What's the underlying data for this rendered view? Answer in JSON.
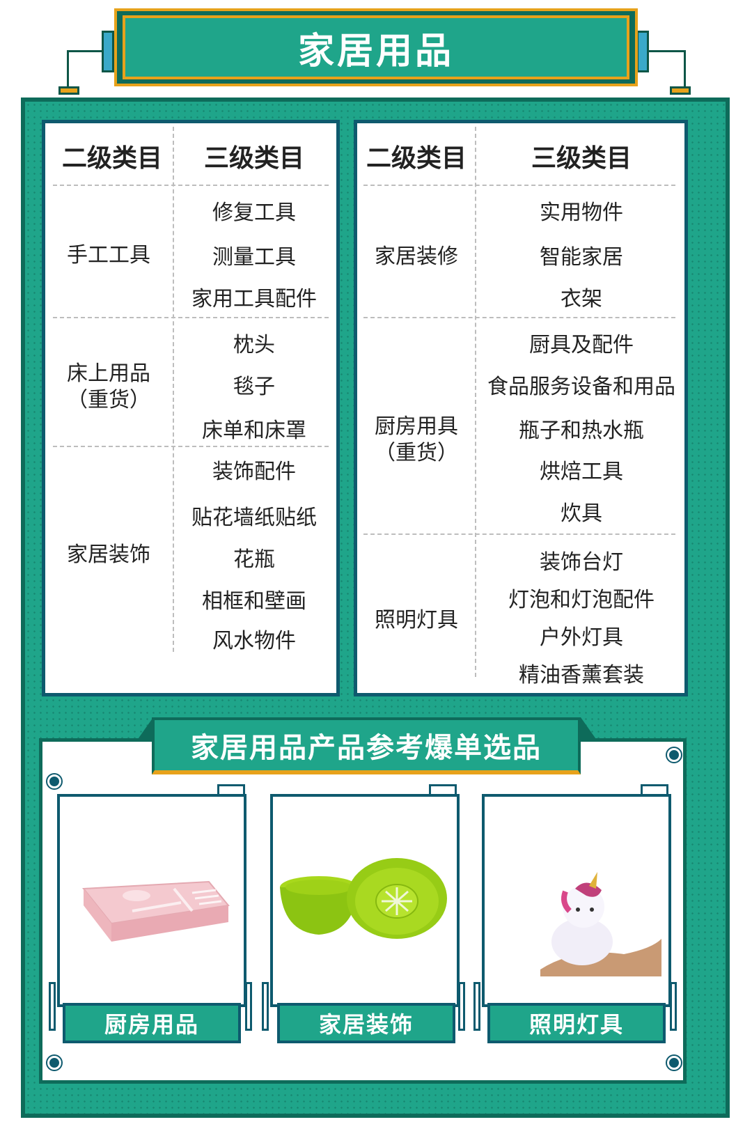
{
  "title": "家居用品",
  "left_table": {
    "header_level2": "二级类目",
    "header_level3": "三级类目",
    "groups": [
      {
        "category": "手工工具",
        "items": [
          "修复工具",
          "测量工具",
          "家用工具配件"
        ]
      },
      {
        "category": "床上用品\n（重货）",
        "items": [
          "枕头",
          "毯子",
          "床单和床罩"
        ]
      },
      {
        "category": "家居装饰",
        "items": [
          "装饰配件",
          "贴花墙纸贴纸",
          "花瓶",
          "相框和壁画",
          "风水物件"
        ]
      }
    ]
  },
  "right_table": {
    "header_level2": "二级类目",
    "header_level3": "三级类目",
    "groups": [
      {
        "category": "家居装修",
        "items": [
          "实用物件",
          "智能家居",
          "衣架"
        ]
      },
      {
        "category": "厨房用具\n（重货）",
        "items": [
          "厨具及配件",
          "食品服务设备和用品",
          "瓶子和热水瓶",
          "烘焙工具",
          "炊具"
        ]
      },
      {
        "category": "照明灯具",
        "items": [
          "装饰台灯",
          "灯泡和灯泡配件",
          "户外灯具",
          "精油香薰套装"
        ]
      }
    ]
  },
  "products": {
    "heading": "家居用品产品参考爆单选品",
    "cards": [
      {
        "label": "厨房用品",
        "image": "pink-bento-lunchbox"
      },
      {
        "label": "家居装饰",
        "image": "green-plastic-bowls"
      },
      {
        "label": "照明灯具",
        "image": "unicorn-night-light"
      }
    ]
  },
  "colors": {
    "teal": "#1fa58a",
    "dark_teal": "#0e6b5a",
    "navy": "#0e5a6e",
    "gold": "#e7a21b"
  }
}
